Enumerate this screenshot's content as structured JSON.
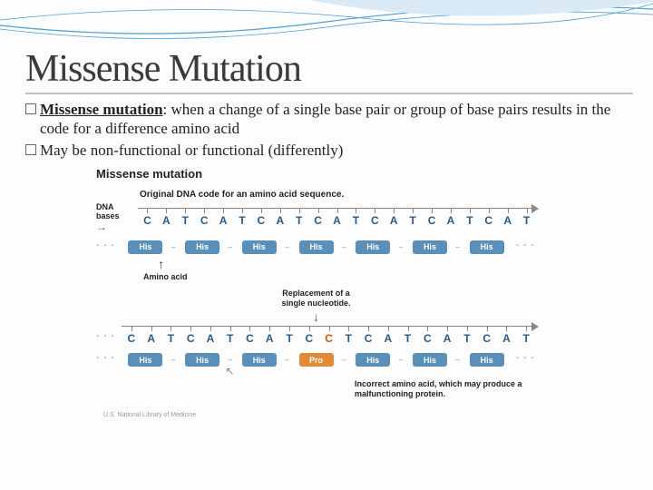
{
  "slide": {
    "title": "Missense Mutation",
    "bullets": [
      {
        "term": "Missense mutation",
        "rest": ": when a change of a single base pair or group of base pairs results in the code for a difference amino acid"
      },
      {
        "term": "",
        "rest": "May be non-functional or functional (differently)"
      }
    ]
  },
  "diagram": {
    "title": "Missense mutation",
    "subtitle_original": "Original DNA code for an amino acid sequence.",
    "label_dna": "DNA bases",
    "label_amino": "Amino acid",
    "replacement_note_l1": "Replacement of a",
    "replacement_note_l2": "single nucleotide.",
    "incorrect_note": "Incorrect amino acid, which may produce a malfunctioning protein.",
    "credit": "U.S. National Library of Medicine",
    "original": {
      "bases": [
        "C",
        "A",
        "T",
        "C",
        "A",
        "T",
        "C",
        "A",
        "T",
        "C",
        "A",
        "T",
        "C",
        "A",
        "T",
        "C",
        "A",
        "T",
        "C",
        "A",
        "T"
      ],
      "aminos": [
        "His",
        "His",
        "His",
        "His",
        "His",
        "His",
        "His"
      ]
    },
    "mutated": {
      "bases": [
        "C",
        "A",
        "T",
        "C",
        "A",
        "T",
        "C",
        "A",
        "T",
        "C",
        "C",
        "T",
        "C",
        "A",
        "T",
        "C",
        "A",
        "T",
        "C",
        "A",
        "T"
      ],
      "mut_index": 10,
      "aminos": [
        "His",
        "His",
        "His",
        "Pro",
        "His",
        "His",
        "His"
      ],
      "amino_mut_index": 3
    },
    "colors": {
      "base_normal": "#2a5a8a",
      "base_mut": "#cc5500",
      "amino_his": "#5a8fba",
      "amino_pro": "#e08a3a"
    }
  }
}
